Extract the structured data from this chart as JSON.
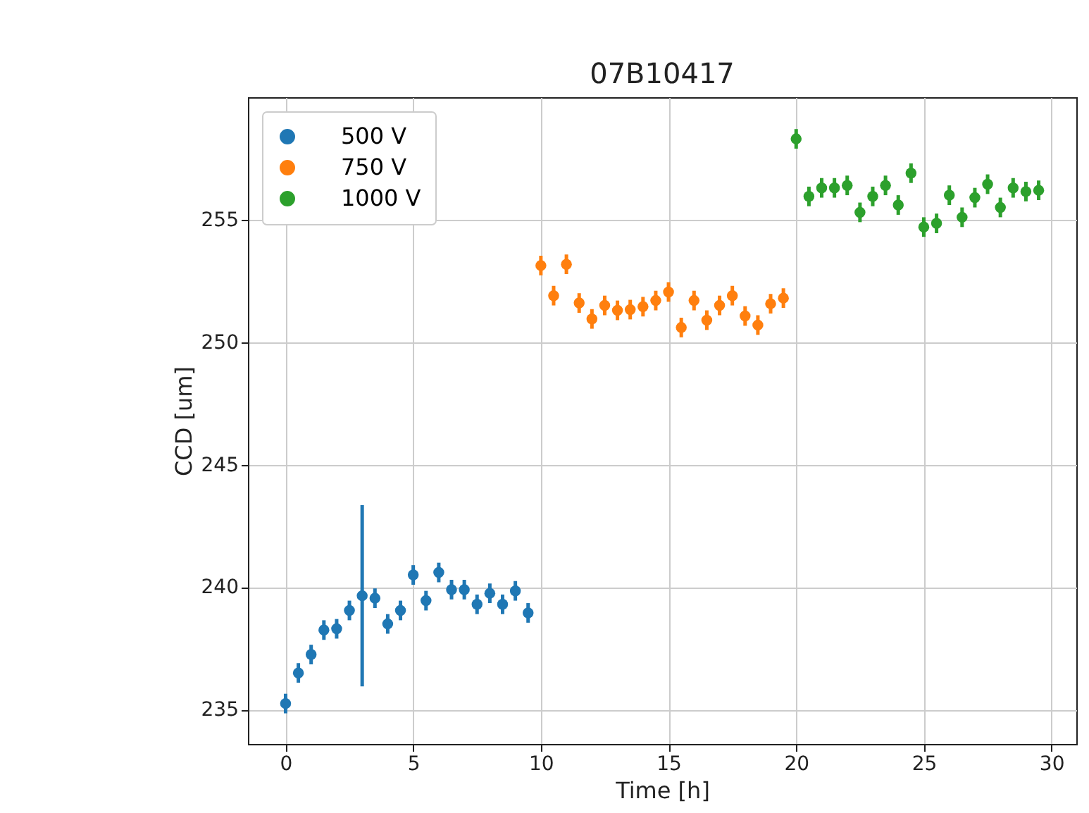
{
  "chart_data": {
    "type": "scatter",
    "title": "07B10417",
    "xlabel": "Time [h]",
    "ylabel": "CCD [um]",
    "xlim": [
      -1.475,
      30.975
    ],
    "xticks": [
      0,
      5,
      10,
      15,
      20,
      25,
      30
    ],
    "ylim": [
      233.6,
      260.0
    ],
    "yticks": [
      235,
      240,
      245,
      250,
      255
    ],
    "grid": true,
    "legend": "top left",
    "marker": "circle",
    "series": [
      {
        "name": "500 V",
        "color": "#1f77b4",
        "x": [
          0,
          0.5,
          1,
          1.5,
          2,
          2.5,
          3,
          3.5,
          4,
          4.5,
          5,
          5.5,
          6,
          6.5,
          7,
          7.5,
          8,
          8.5,
          9,
          9.5
        ],
        "values": [
          235.25,
          236.5,
          237.25,
          238.25,
          238.3,
          239.05,
          239.65,
          239.55,
          238.5,
          239.05,
          240.5,
          239.45,
          240.6,
          239.9,
          239.9,
          239.3,
          239.75,
          239.3,
          239.85,
          238.95
        ],
        "errors": [
          0.4,
          0.4,
          0.4,
          0.4,
          0.4,
          0.4,
          3.7,
          0.4,
          0.4,
          0.4,
          0.4,
          0.4,
          0.4,
          0.4,
          0.4,
          0.4,
          0.4,
          0.4,
          0.4,
          0.4
        ]
      },
      {
        "name": "750 V",
        "color": "#ff7f0e",
        "x": [
          10,
          10.5,
          11,
          11.5,
          12,
          12.5,
          13,
          13.5,
          14,
          14.5,
          15,
          15.5,
          16,
          16.5,
          17,
          17.5,
          18,
          18.5,
          19,
          19.5
        ],
        "values": [
          253.13,
          251.9,
          253.18,
          251.6,
          250.95,
          251.5,
          251.3,
          251.33,
          251.45,
          251.7,
          252.05,
          250.6,
          251.7,
          250.9,
          251.5,
          251.9,
          251.07,
          250.7,
          251.57,
          251.8
        ],
        "errors": [
          0.4,
          0.4,
          0.4,
          0.4,
          0.4,
          0.4,
          0.4,
          0.4,
          0.4,
          0.4,
          0.4,
          0.4,
          0.4,
          0.4,
          0.4,
          0.4,
          0.4,
          0.4,
          0.4,
          0.4
        ]
      },
      {
        "name": "1000 V",
        "color": "#2ca02c",
        "x": [
          20,
          20.5,
          21,
          21.5,
          22,
          22.5,
          23,
          23.5,
          24,
          24.5,
          25,
          25.5,
          26,
          26.5,
          27,
          27.5,
          28,
          28.5,
          29,
          29.5
        ],
        "values": [
          258.3,
          255.95,
          256.3,
          256.3,
          256.4,
          255.3,
          255.95,
          256.4,
          255.6,
          256.9,
          254.7,
          254.85,
          256.0,
          255.1,
          255.9,
          256.45,
          255.5,
          256.3,
          256.15,
          256.2
        ],
        "errors": [
          0.4,
          0.4,
          0.4,
          0.4,
          0.4,
          0.4,
          0.4,
          0.4,
          0.4,
          0.4,
          0.4,
          0.4,
          0.4,
          0.4,
          0.4,
          0.4,
          0.4,
          0.4,
          0.4,
          0.4
        ]
      }
    ]
  }
}
